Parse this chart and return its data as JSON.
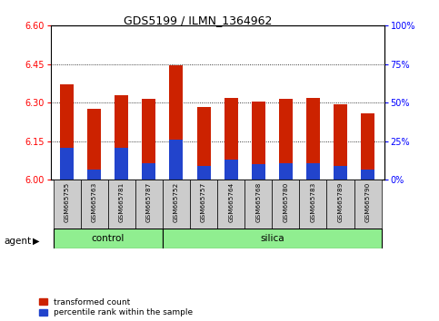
{
  "title": "GDS5199 / ILMN_1364962",
  "samples": [
    "GSM665755",
    "GSM665763",
    "GSM665781",
    "GSM665787",
    "GSM665752",
    "GSM665757",
    "GSM665764",
    "GSM665768",
    "GSM665780",
    "GSM665783",
    "GSM665789",
    "GSM665790"
  ],
  "group_labels": [
    "control",
    "silica"
  ],
  "bar_bottom": 6.0,
  "red_tops": [
    6.37,
    6.275,
    6.33,
    6.315,
    6.445,
    6.285,
    6.32,
    6.305,
    6.315,
    6.32,
    6.295,
    6.26
  ],
  "blue_tops": [
    6.125,
    6.04,
    6.125,
    6.065,
    6.155,
    6.055,
    6.08,
    6.06,
    6.065,
    6.065,
    6.055,
    6.04
  ],
  "ylim_left": [
    6.0,
    6.6
  ],
  "yticks_left": [
    6.0,
    6.15,
    6.3,
    6.45,
    6.6
  ],
  "ylim_right": [
    0,
    100
  ],
  "yticks_right": [
    0,
    25,
    50,
    75,
    100
  ],
  "bar_width": 0.5,
  "bar_color_red": "#cc2200",
  "bar_color_blue": "#2244cc",
  "agent_label": "agent",
  "legend_red": "transformed count",
  "legend_blue": "percentile rank within the sample",
  "control_count": 4,
  "silica_count": 8,
  "green_color": "#90ee90",
  "gray_color": "#cccccc",
  "title_fontsize": 9,
  "tick_fontsize": 7,
  "label_fontsize": 7
}
